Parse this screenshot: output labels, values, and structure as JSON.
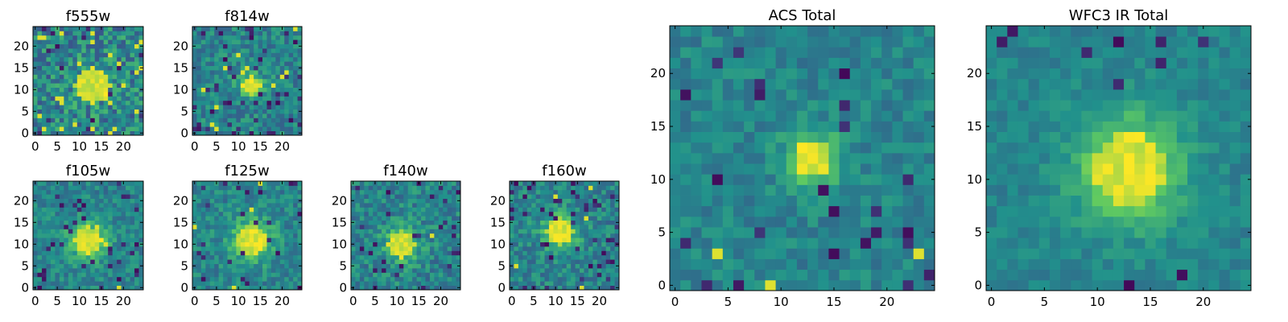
{
  "chart_data": [
    {
      "id": "f555w",
      "type": "heatmap",
      "title": "f555w",
      "size": 25,
      "xticks": [
        "0",
        "5",
        "10",
        "15",
        "20"
      ],
      "yticks": [
        "0",
        "5",
        "10",
        "15",
        "20"
      ],
      "peak": [
        13,
        11
      ],
      "sigma": 4.0,
      "amp": 0.1,
      "noise": 0.42,
      "seed": 11,
      "hot": 0.05,
      "cold": 0.03
    },
    {
      "id": "f814w",
      "type": "heatmap",
      "title": "f814w",
      "size": 25,
      "xticks": [
        "0",
        "5",
        "10",
        "15",
        "20"
      ],
      "yticks": [
        "0",
        "5",
        "10",
        "15",
        "20"
      ],
      "peak": [
        13,
        11
      ],
      "sigma": 2.0,
      "amp": 0.45,
      "noise": 0.3,
      "seed": 23,
      "hot": 0.02,
      "cold": 0.06
    },
    {
      "id": "f105w",
      "type": "heatmap",
      "title": "f105w",
      "size": 25,
      "xticks": [
        "0",
        "5",
        "10",
        "15",
        "20"
      ],
      "yticks": [
        "0",
        "5",
        "10",
        "15",
        "20"
      ],
      "peak": [
        12,
        11
      ],
      "sigma": 3.0,
      "amp": 0.45,
      "noise": 0.25,
      "seed": 37,
      "hot": 0.01,
      "cold": 0.05
    },
    {
      "id": "f125w",
      "type": "heatmap",
      "title": "f125w",
      "size": 25,
      "xticks": [
        "0",
        "5",
        "10",
        "15",
        "20"
      ],
      "yticks": [
        "0",
        "5",
        "10",
        "15",
        "20"
      ],
      "peak": [
        13,
        11
      ],
      "sigma": 3.5,
      "amp": 0.4,
      "noise": 0.26,
      "seed": 41,
      "hot": 0.01,
      "cold": 0.05
    },
    {
      "id": "f140w",
      "type": "heatmap",
      "title": "f140w",
      "size": 25,
      "xticks": [
        "0",
        "5",
        "10",
        "15",
        "20"
      ],
      "yticks": [
        "0",
        "5",
        "10",
        "15",
        "20"
      ],
      "peak": [
        11,
        10
      ],
      "sigma": 3.0,
      "amp": 0.35,
      "noise": 0.3,
      "seed": 53,
      "hot": 0.01,
      "cold": 0.06
    },
    {
      "id": "f160w",
      "type": "heatmap",
      "title": "f160w",
      "size": 25,
      "xticks": [
        "0",
        "5",
        "10",
        "15",
        "20"
      ],
      "yticks": [
        "0",
        "5",
        "10",
        "15",
        "20"
      ],
      "peak": [
        11,
        13
      ],
      "sigma": 3.0,
      "amp": 0.35,
      "noise": 0.28,
      "seed": 67,
      "hot": 0.01,
      "cold": 0.06
    },
    {
      "id": "acs-total",
      "type": "heatmap",
      "title": "ACS Total",
      "size": 25,
      "xticks": [
        "0",
        "5",
        "10",
        "15",
        "20"
      ],
      "yticks": [
        "0",
        "5",
        "10",
        "15",
        "20"
      ],
      "peak": [
        13,
        12
      ],
      "sigma": 1.8,
      "amp": 0.45,
      "noise": 0.2,
      "seed": 79,
      "hot": 0.01,
      "cold": 0.04
    },
    {
      "id": "wfc3-ir-total",
      "type": "heatmap",
      "title": "WFC3 IR Total",
      "size": 25,
      "xticks": [
        "0",
        "5",
        "10",
        "15",
        "20"
      ],
      "yticks": [
        "0",
        "5",
        "10",
        "15",
        "20"
      ],
      "peak": [
        13,
        11
      ],
      "sigma": 3.5,
      "amp": 0.5,
      "noise": 0.15,
      "seed": 97,
      "hot": 0.0,
      "cold": 0.03
    }
  ],
  "colormap": [
    "#440154",
    "#3b528b",
    "#21918c",
    "#5ec962",
    "#fde725"
  ]
}
